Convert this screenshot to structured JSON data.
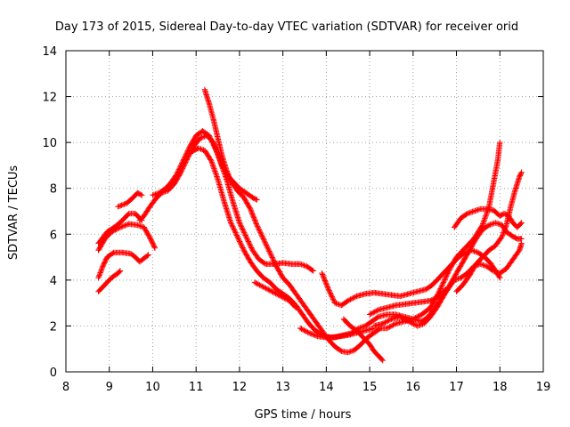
{
  "chart_data": {
    "type": "scatter",
    "title": "Day 173 of 2015, Sidereal Day-to-day VTEC variation (SDTVAR) for receiver orid",
    "xlabel": "GPS time / hours",
    "ylabel": "SDTVAR / TECUs",
    "xlim": [
      8,
      19
    ],
    "ylim": [
      0,
      14
    ],
    "xticks": [
      "8",
      "9",
      "10",
      "11",
      "12",
      "13",
      "14",
      "15",
      "16",
      "17",
      "18",
      "19"
    ],
    "yticks": [
      "0",
      "2",
      "4",
      "6",
      "8",
      "10",
      "12",
      "14"
    ],
    "grid": true,
    "marker": "+",
    "color": "#ff0000",
    "series": [
      {
        "name": "s1",
        "points": [
          [
            8.75,
            3.5
          ],
          [
            8.9,
            3.8
          ],
          [
            9.05,
            4.1
          ],
          [
            9.2,
            4.3
          ],
          [
            9.25,
            4.4
          ]
        ]
      },
      {
        "name": "s2",
        "points": [
          [
            8.75,
            4.1
          ],
          [
            8.85,
            4.6
          ],
          [
            8.95,
            5.0
          ],
          [
            9.1,
            5.2
          ],
          [
            9.3,
            5.2
          ],
          [
            9.5,
            5.15
          ],
          [
            9.6,
            5.0
          ],
          [
            9.7,
            4.8
          ],
          [
            9.8,
            4.95
          ],
          [
            9.9,
            5.1
          ]
        ]
      },
      {
        "name": "s3",
        "points": [
          [
            8.75,
            5.3
          ],
          [
            8.9,
            5.8
          ],
          [
            9.05,
            6.1
          ],
          [
            9.25,
            6.3
          ],
          [
            9.45,
            6.45
          ],
          [
            9.65,
            6.4
          ],
          [
            9.8,
            6.3
          ],
          [
            9.95,
            5.8
          ],
          [
            10.05,
            5.4
          ]
        ]
      },
      {
        "name": "s4",
        "points": [
          [
            8.75,
            5.6
          ],
          [
            8.95,
            6.1
          ],
          [
            9.15,
            6.35
          ],
          [
            9.3,
            6.6
          ],
          [
            9.45,
            6.9
          ],
          [
            9.6,
            6.9
          ],
          [
            9.75,
            6.6
          ]
        ]
      },
      {
        "name": "s5",
        "points": [
          [
            9.2,
            7.2
          ],
          [
            9.4,
            7.35
          ],
          [
            9.55,
            7.6
          ],
          [
            9.65,
            7.8
          ],
          [
            9.75,
            7.7
          ]
        ]
      },
      {
        "name": "s6",
        "points": [
          [
            10.0,
            7.7
          ],
          [
            10.15,
            7.8
          ],
          [
            10.3,
            8.0
          ],
          [
            10.4,
            8.2
          ],
          [
            10.55,
            8.6
          ],
          [
            10.7,
            9.2
          ],
          [
            10.85,
            9.8
          ],
          [
            11.0,
            10.3
          ],
          [
            11.15,
            10.5
          ],
          [
            11.3,
            10.3
          ],
          [
            11.45,
            9.7
          ],
          [
            11.6,
            9.0
          ],
          [
            11.75,
            8.5
          ],
          [
            11.9,
            8.2
          ],
          [
            12.0,
            8.0
          ],
          [
            12.15,
            7.8
          ],
          [
            12.3,
            7.6
          ],
          [
            12.4,
            7.5
          ]
        ]
      },
      {
        "name": "s7",
        "points": [
          [
            9.7,
            6.6
          ],
          [
            9.8,
            6.8
          ],
          [
            9.9,
            7.1
          ],
          [
            10.05,
            7.5
          ],
          [
            10.2,
            7.8
          ],
          [
            10.35,
            7.9
          ],
          [
            10.5,
            8.2
          ],
          [
            10.65,
            8.7
          ],
          [
            10.8,
            9.3
          ],
          [
            10.95,
            9.85
          ],
          [
            11.1,
            10.2
          ],
          [
            11.25,
            10.3
          ],
          [
            11.4,
            10.0
          ],
          [
            11.55,
            9.2
          ],
          [
            11.7,
            8.4
          ],
          [
            11.85,
            7.4
          ],
          [
            12.0,
            6.5
          ],
          [
            12.15,
            5.9
          ],
          [
            12.3,
            5.3
          ],
          [
            12.45,
            4.9
          ],
          [
            12.6,
            4.7
          ],
          [
            12.8,
            4.7
          ],
          [
            13.0,
            4.75
          ],
          [
            13.2,
            4.7
          ],
          [
            13.4,
            4.7
          ],
          [
            13.55,
            4.6
          ],
          [
            13.7,
            4.4
          ]
        ]
      },
      {
        "name": "s8",
        "points": [
          [
            10.9,
            9.6
          ],
          [
            11.05,
            9.75
          ],
          [
            11.2,
            9.65
          ],
          [
            11.35,
            9.2
          ],
          [
            11.5,
            8.4
          ],
          [
            11.65,
            7.4
          ],
          [
            11.8,
            6.5
          ],
          [
            11.95,
            5.9
          ],
          [
            12.1,
            5.3
          ],
          [
            12.25,
            4.8
          ],
          [
            12.4,
            4.4
          ],
          [
            12.55,
            4.1
          ],
          [
            12.7,
            3.9
          ],
          [
            12.85,
            3.6
          ],
          [
            13.0,
            3.4
          ],
          [
            13.15,
            3.2
          ],
          [
            13.3,
            2.9
          ],
          [
            13.45,
            2.5
          ],
          [
            13.6,
            2.1
          ],
          [
            13.75,
            1.8
          ],
          [
            13.9,
            1.6
          ],
          [
            14.1,
            1.5
          ],
          [
            14.3,
            1.55
          ],
          [
            14.5,
            1.6
          ],
          [
            14.7,
            1.7
          ],
          [
            14.9,
            1.8
          ],
          [
            15.1,
            1.9
          ]
        ]
      },
      {
        "name": "s9",
        "points": [
          [
            11.2,
            12.3
          ],
          [
            11.3,
            11.7
          ],
          [
            11.4,
            11.0
          ],
          [
            11.5,
            10.2
          ],
          [
            11.6,
            9.4
          ],
          [
            11.7,
            8.8
          ],
          [
            11.8,
            8.3
          ],
          [
            11.95,
            7.9
          ],
          [
            12.1,
            7.6
          ],
          [
            12.25,
            7.1
          ],
          [
            12.4,
            6.4
          ],
          [
            12.55,
            5.8
          ],
          [
            12.7,
            5.2
          ],
          [
            12.85,
            4.6
          ],
          [
            13.0,
            4.1
          ],
          [
            13.15,
            3.8
          ],
          [
            13.3,
            3.4
          ],
          [
            13.45,
            3.0
          ],
          [
            13.6,
            2.6
          ],
          [
            13.75,
            2.2
          ],
          [
            13.9,
            1.8
          ],
          [
            14.05,
            1.4
          ],
          [
            14.2,
            1.1
          ],
          [
            14.35,
            0.9
          ],
          [
            14.5,
            0.85
          ],
          [
            14.65,
            0.95
          ],
          [
            14.8,
            1.2
          ],
          [
            14.95,
            1.5
          ],
          [
            15.1,
            1.7
          ],
          [
            15.25,
            1.9
          ],
          [
            15.4,
            1.9
          ],
          [
            15.6,
            2.1
          ],
          [
            15.8,
            2.2
          ],
          [
            16.0,
            2.3
          ],
          [
            16.2,
            2.5
          ],
          [
            16.4,
            2.8
          ],
          [
            16.55,
            3.3
          ],
          [
            16.7,
            3.9
          ],
          [
            16.85,
            4.5
          ],
          [
            17.0,
            5.0
          ],
          [
            17.2,
            5.4
          ],
          [
            17.4,
            5.8
          ],
          [
            17.6,
            6.4
          ],
          [
            17.75,
            7.2
          ],
          [
            17.85,
            8.2
          ],
          [
            17.95,
            9.2
          ],
          [
            18.0,
            10.0
          ]
        ]
      },
      {
        "name": "s10",
        "points": [
          [
            12.35,
            3.9
          ],
          [
            12.55,
            3.7
          ],
          [
            12.75,
            3.5
          ],
          [
            12.95,
            3.3
          ],
          [
            13.15,
            3.1
          ],
          [
            13.3,
            2.8
          ]
        ]
      },
      {
        "name": "s11",
        "points": [
          [
            13.9,
            4.3
          ],
          [
            14.05,
            3.6
          ],
          [
            14.2,
            3.0
          ],
          [
            14.35,
            2.9
          ],
          [
            14.5,
            3.1
          ],
          [
            14.7,
            3.3
          ],
          [
            14.9,
            3.4
          ],
          [
            15.1,
            3.45
          ],
          [
            15.3,
            3.4
          ],
          [
            15.5,
            3.35
          ],
          [
            15.7,
            3.3
          ],
          [
            15.9,
            3.4
          ],
          [
            16.1,
            3.5
          ],
          [
            16.3,
            3.6
          ],
          [
            16.45,
            3.8
          ],
          [
            16.6,
            4.1
          ],
          [
            16.75,
            4.4
          ],
          [
            16.9,
            4.7
          ],
          [
            17.05,
            5.0
          ],
          [
            17.2,
            5.2
          ],
          [
            17.35,
            5.3
          ],
          [
            17.5,
            5.2
          ],
          [
            17.65,
            5.0
          ],
          [
            17.8,
            4.7
          ],
          [
            17.9,
            4.4
          ],
          [
            18.0,
            4.1
          ]
        ]
      },
      {
        "name": "s12",
        "points": [
          [
            13.4,
            1.9
          ],
          [
            13.6,
            1.7
          ],
          [
            13.8,
            1.55
          ],
          [
            14.0,
            1.5
          ],
          [
            14.2,
            1.5
          ],
          [
            14.4,
            1.6
          ],
          [
            14.6,
            1.7
          ],
          [
            14.75,
            1.9
          ],
          [
            14.9,
            2.0
          ],
          [
            15.05,
            2.2
          ],
          [
            15.2,
            2.4
          ],
          [
            15.4,
            2.5
          ],
          [
            15.6,
            2.5
          ],
          [
            15.8,
            2.4
          ],
          [
            16.0,
            2.3
          ],
          [
            16.2,
            2.2
          ],
          [
            16.35,
            2.4
          ],
          [
            16.5,
            2.8
          ],
          [
            16.65,
            3.2
          ],
          [
            16.8,
            3.6
          ],
          [
            16.95,
            4.0
          ],
          [
            17.1,
            4.1
          ],
          [
            17.25,
            4.3
          ],
          [
            17.4,
            4.6
          ],
          [
            17.55,
            4.7
          ],
          [
            17.7,
            4.6
          ],
          [
            17.85,
            4.4
          ],
          [
            18.0,
            4.3
          ],
          [
            18.15,
            4.5
          ],
          [
            18.3,
            4.9
          ],
          [
            18.45,
            5.3
          ],
          [
            18.5,
            5.6
          ]
        ]
      },
      {
        "name": "s13",
        "points": [
          [
            14.4,
            2.3
          ],
          [
            14.55,
            2.0
          ],
          [
            14.7,
            1.8
          ],
          [
            14.85,
            1.5
          ],
          [
            15.0,
            1.2
          ],
          [
            15.1,
            0.9
          ],
          [
            15.2,
            0.7
          ],
          [
            15.3,
            0.5
          ]
        ]
      },
      {
        "name": "s14",
        "points": [
          [
            15.0,
            2.5
          ],
          [
            15.2,
            2.7
          ],
          [
            15.4,
            2.8
          ],
          [
            15.6,
            2.9
          ],
          [
            15.8,
            2.95
          ],
          [
            16.0,
            3.0
          ],
          [
            16.2,
            3.05
          ],
          [
            16.4,
            3.1
          ],
          [
            16.6,
            3.3
          ],
          [
            16.75,
            3.6
          ]
        ]
      },
      {
        "name": "s15",
        "points": [
          [
            15.1,
            2.0
          ],
          [
            15.3,
            2.1
          ],
          [
            15.5,
            2.3
          ],
          [
            15.7,
            2.4
          ],
          [
            15.9,
            2.2
          ],
          [
            16.1,
            2.0
          ],
          [
            16.25,
            2.1
          ],
          [
            16.4,
            2.4
          ],
          [
            16.55,
            2.8
          ],
          [
            16.7,
            3.3
          ],
          [
            16.85,
            3.8
          ],
          [
            17.0,
            4.3
          ],
          [
            17.15,
            4.8
          ],
          [
            17.3,
            5.3
          ],
          [
            17.45,
            5.8
          ],
          [
            17.6,
            6.2
          ],
          [
            17.75,
            6.4
          ],
          [
            17.9,
            6.5
          ],
          [
            18.05,
            6.4
          ],
          [
            18.15,
            6.1
          ],
          [
            18.3,
            5.9
          ],
          [
            18.4,
            5.8
          ],
          [
            18.5,
            5.8
          ]
        ]
      },
      {
        "name": "s16",
        "points": [
          [
            16.95,
            6.3
          ],
          [
            17.1,
            6.7
          ],
          [
            17.25,
            6.9
          ],
          [
            17.4,
            7.0
          ],
          [
            17.55,
            7.1
          ],
          [
            17.7,
            7.1
          ],
          [
            17.85,
            7.05
          ],
          [
            18.0,
            6.8
          ],
          [
            18.1,
            6.9
          ],
          [
            18.2,
            6.8
          ],
          [
            18.3,
            6.5
          ],
          [
            18.4,
            6.3
          ],
          [
            18.5,
            6.5
          ]
        ]
      },
      {
        "name": "s17",
        "points": [
          [
            17.0,
            3.5
          ],
          [
            17.15,
            3.8
          ],
          [
            17.3,
            4.2
          ],
          [
            17.45,
            4.7
          ],
          [
            17.6,
            5.0
          ],
          [
            17.75,
            5.3
          ],
          [
            17.9,
            5.5
          ],
          [
            18.05,
            5.9
          ],
          [
            18.15,
            6.4
          ],
          [
            18.25,
            7.2
          ],
          [
            18.35,
            7.9
          ],
          [
            18.45,
            8.5
          ],
          [
            18.5,
            8.7
          ]
        ]
      }
    ]
  }
}
